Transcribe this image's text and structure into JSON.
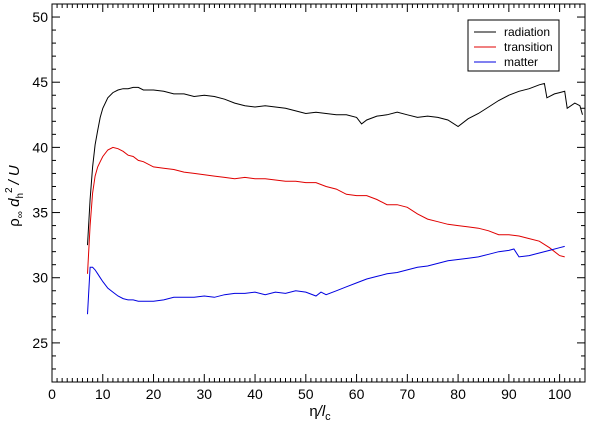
{
  "chart_data": {
    "type": "line",
    "xlabel": {
      "main": "η",
      "mid": "/l",
      "sub": "c"
    },
    "ylabel": {
      "rho": "ρ",
      "rho_sub": "∞",
      "d": " d",
      "d_sub": "h",
      "sup": "2",
      "rest": "/ U"
    },
    "xlim": [
      0,
      105
    ],
    "ylim": [
      22,
      51
    ],
    "xticks": [
      0,
      10,
      20,
      30,
      40,
      50,
      60,
      70,
      80,
      90,
      100
    ],
    "yticks": [
      25,
      30,
      35,
      40,
      45,
      50
    ],
    "grid": false,
    "legend_position": "top-right",
    "series": [
      {
        "name": "radiation",
        "color": "#000000",
        "x": [
          7,
          7.5,
          8,
          8.5,
          9,
          9.5,
          10,
          11,
          12,
          13,
          14,
          15,
          16,
          17,
          18,
          20,
          22,
          24,
          26,
          28,
          30,
          32,
          34,
          36,
          38,
          40,
          42,
          44,
          46,
          48,
          50,
          52,
          54,
          56,
          58,
          60,
          61,
          62,
          64,
          66,
          68,
          70,
          72,
          74,
          76,
          78,
          80,
          82,
          84,
          86,
          88,
          90,
          92,
          94,
          96,
          97,
          97.5,
          99,
          100,
          101,
          101.5,
          103,
          104,
          104.5
        ],
        "y": [
          32.5,
          36,
          38.5,
          40.2,
          41.3,
          42.3,
          43,
          43.8,
          44.2,
          44.4,
          44.5,
          44.5,
          44.6,
          44.6,
          44.4,
          44.4,
          44.3,
          44.1,
          44.1,
          43.9,
          44.0,
          43.9,
          43.7,
          43.4,
          43.2,
          43.1,
          43.2,
          43.1,
          43.0,
          42.8,
          42.6,
          42.7,
          42.6,
          42.5,
          42.5,
          42.3,
          41.8,
          42.1,
          42.4,
          42.5,
          42.7,
          42.5,
          42.3,
          42.4,
          42.3,
          42.1,
          41.6,
          42.2,
          42.6,
          43.1,
          43.6,
          44.0,
          44.3,
          44.5,
          44.8,
          44.9,
          43.8,
          44.1,
          44.2,
          44.3,
          43.0,
          43.4,
          43.2,
          42.5
        ]
      },
      {
        "name": "transition",
        "color": "#e00000",
        "x": [
          7,
          7.5,
          8,
          8.5,
          9,
          9.5,
          10,
          11,
          12,
          13,
          14,
          15,
          16,
          17,
          18,
          20,
          22,
          24,
          26,
          28,
          30,
          32,
          34,
          36,
          38,
          40,
          42,
          44,
          46,
          48,
          50,
          52,
          54,
          56,
          58,
          60,
          62,
          64,
          66,
          68,
          70,
          72,
          74,
          76,
          78,
          80,
          82,
          84,
          86,
          88,
          90,
          92,
          94,
          96,
          98,
          100,
          101
        ],
        "y": [
          30.3,
          34,
          36.5,
          37.8,
          38.5,
          38.9,
          39.3,
          39.8,
          40.0,
          39.9,
          39.7,
          39.4,
          39.3,
          39.0,
          38.9,
          38.5,
          38.4,
          38.3,
          38.1,
          38.0,
          37.9,
          37.8,
          37.7,
          37.6,
          37.7,
          37.6,
          37.6,
          37.5,
          37.4,
          37.4,
          37.3,
          37.3,
          37.0,
          36.8,
          36.4,
          36.3,
          36.3,
          36.0,
          35.6,
          35.6,
          35.4,
          34.9,
          34.5,
          34.3,
          34.1,
          34.0,
          33.9,
          33.8,
          33.6,
          33.3,
          33.3,
          33.2,
          33.0,
          32.8,
          32.3,
          31.7,
          31.6
        ]
      },
      {
        "name": "matter",
        "color": "#0000e0",
        "x": [
          7,
          7.5,
          8,
          8.5,
          9,
          9.5,
          10,
          11,
          12,
          13,
          14,
          15,
          16,
          17,
          18,
          20,
          22,
          24,
          26,
          28,
          30,
          32,
          34,
          36,
          38,
          40,
          42,
          44,
          46,
          48,
          50,
          52,
          53,
          54,
          56,
          58,
          60,
          62,
          64,
          66,
          68,
          70,
          72,
          74,
          76,
          78,
          80,
          82,
          84,
          86,
          88,
          90,
          91,
          92,
          94,
          96,
          98,
          100,
          101
        ],
        "y": [
          27.2,
          30.8,
          30.8,
          30.6,
          30.3,
          30.0,
          29.7,
          29.2,
          28.9,
          28.6,
          28.4,
          28.3,
          28.3,
          28.2,
          28.2,
          28.2,
          28.3,
          28.5,
          28.5,
          28.5,
          28.6,
          28.5,
          28.7,
          28.8,
          28.8,
          28.9,
          28.7,
          28.9,
          28.8,
          29.0,
          28.9,
          28.6,
          28.9,
          28.7,
          29.0,
          29.3,
          29.6,
          29.9,
          30.1,
          30.3,
          30.4,
          30.6,
          30.8,
          30.9,
          31.1,
          31.3,
          31.4,
          31.5,
          31.6,
          31.8,
          32.0,
          32.1,
          32.2,
          31.6,
          31.7,
          31.9,
          32.1,
          32.3,
          32.4
        ]
      }
    ]
  }
}
